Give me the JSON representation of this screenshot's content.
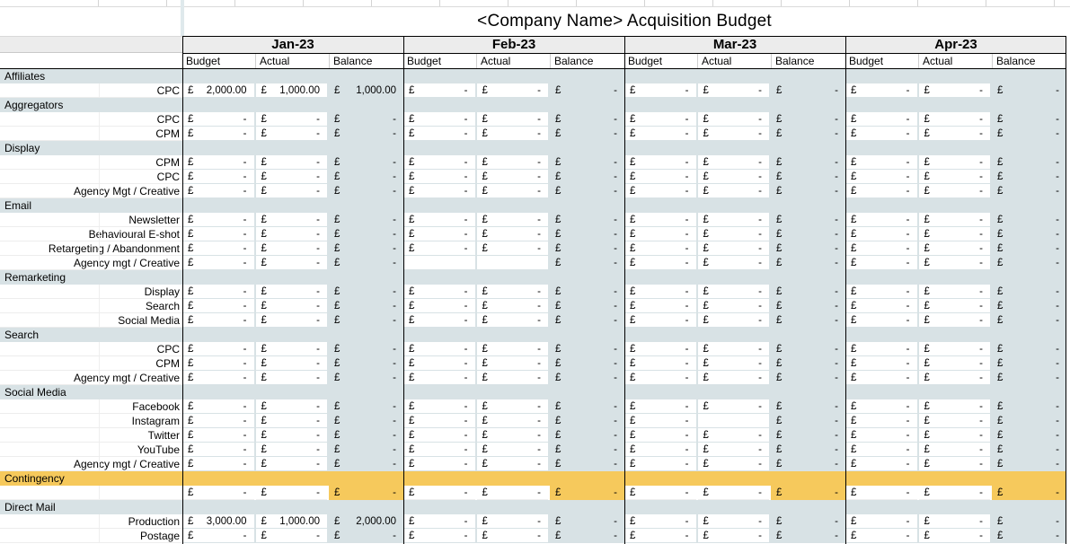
{
  "title": "<Company Name> Acquisition Budget",
  "currency_symbol": "£",
  "months": [
    {
      "label": "Jan-23"
    },
    {
      "label": "Feb-23"
    },
    {
      "label": "Mar-23"
    },
    {
      "label": "Apr-23"
    }
  ],
  "column_headers": [
    "Budget",
    "Actual",
    "Balance"
  ],
  "colors": {
    "band_blue": "#d8e2e5",
    "band_yellow": "#f6c95c",
    "header_gray": "#ececec"
  },
  "rows": [
    {
      "type": "category",
      "label": "Affiliates"
    },
    {
      "type": "data",
      "label": "CPC",
      "values": [
        [
          "2,000.00",
          "1,000.00",
          "1,000.00"
        ],
        [
          "-",
          "-",
          "-"
        ],
        [
          "-",
          "-",
          "-"
        ],
        [
          "-",
          "-",
          "-"
        ]
      ]
    },
    {
      "type": "category",
      "label": "Aggregators"
    },
    {
      "type": "data",
      "label": "CPC",
      "values": [
        [
          "-",
          "-",
          "-"
        ],
        [
          "-",
          "-",
          "-"
        ],
        [
          "-",
          "-",
          "-"
        ],
        [
          "-",
          "-",
          "-"
        ]
      ]
    },
    {
      "type": "data",
      "label": "CPM",
      "values": [
        [
          "-",
          "-",
          "-"
        ],
        [
          "-",
          "-",
          "-"
        ],
        [
          "-",
          "-",
          "-"
        ],
        [
          "-",
          "-",
          "-"
        ]
      ]
    },
    {
      "type": "category",
      "label": "Display"
    },
    {
      "type": "data",
      "label": "CPM",
      "values": [
        [
          "-",
          "-",
          "-"
        ],
        [
          "-",
          "-",
          "-"
        ],
        [
          "-",
          "-",
          "-"
        ],
        [
          "-",
          "-",
          "-"
        ]
      ]
    },
    {
      "type": "data",
      "label": "CPC",
      "values": [
        [
          "-",
          "-",
          "-"
        ],
        [
          "-",
          "-",
          "-"
        ],
        [
          "-",
          "-",
          "-"
        ],
        [
          "-",
          "-",
          "-"
        ]
      ]
    },
    {
      "type": "data",
      "label": "Agency Mgt / Creative",
      "values": [
        [
          "-",
          "-",
          "-"
        ],
        [
          "-",
          "-",
          "-"
        ],
        [
          "-",
          "-",
          "-"
        ],
        [
          "-",
          "-",
          "-"
        ]
      ]
    },
    {
      "type": "category",
      "label": "Email"
    },
    {
      "type": "data",
      "label": "Newsletter",
      "values": [
        [
          "-",
          "-",
          "-"
        ],
        [
          "-",
          "-",
          "-"
        ],
        [
          "-",
          "-",
          "-"
        ],
        [
          "-",
          "-",
          "-"
        ]
      ]
    },
    {
      "type": "data",
      "label": "Behavioural E-shot",
      "values": [
        [
          "-",
          "-",
          "-"
        ],
        [
          "-",
          "-",
          "-"
        ],
        [
          "-",
          "-",
          "-"
        ],
        [
          "-",
          "-",
          "-"
        ]
      ]
    },
    {
      "type": "data",
      "label": "Retargeting / Abandonment",
      "values": [
        [
          "-",
          "-",
          "-"
        ],
        [
          "-",
          "-",
          "-"
        ],
        [
          "-",
          "-",
          "-"
        ],
        [
          "-",
          "-",
          "-"
        ]
      ]
    },
    {
      "type": "data",
      "label": "Agency mgt / Creative",
      "values": [
        [
          "-",
          "-",
          "-"
        ],
        [
          null,
          null,
          "-"
        ],
        [
          "-",
          "-",
          "-"
        ],
        [
          "-",
          "-",
          "-"
        ]
      ]
    },
    {
      "type": "category",
      "label": "Remarketing"
    },
    {
      "type": "data",
      "label": "Display",
      "values": [
        [
          "-",
          "-",
          "-"
        ],
        [
          "-",
          "-",
          "-"
        ],
        [
          "-",
          "-",
          "-"
        ],
        [
          "-",
          "-",
          "-"
        ]
      ]
    },
    {
      "type": "data",
      "label": "Search",
      "values": [
        [
          "-",
          "-",
          "-"
        ],
        [
          "-",
          "-",
          "-"
        ],
        [
          "-",
          "-",
          "-"
        ],
        [
          "-",
          "-",
          "-"
        ]
      ]
    },
    {
      "type": "data",
      "label": "Social Media",
      "values": [
        [
          "-",
          "-",
          "-"
        ],
        [
          "-",
          "-",
          "-"
        ],
        [
          "-",
          "-",
          "-"
        ],
        [
          "-",
          "-",
          "-"
        ]
      ]
    },
    {
      "type": "category",
      "label": "Search"
    },
    {
      "type": "data",
      "label": "CPC",
      "values": [
        [
          "-",
          "-",
          "-"
        ],
        [
          "-",
          "-",
          "-"
        ],
        [
          "-",
          "-",
          "-"
        ],
        [
          "-",
          "-",
          "-"
        ]
      ]
    },
    {
      "type": "data",
      "label": "CPM",
      "values": [
        [
          "-",
          "-",
          "-"
        ],
        [
          "-",
          "-",
          "-"
        ],
        [
          "-",
          "-",
          "-"
        ],
        [
          "-",
          "-",
          "-"
        ]
      ]
    },
    {
      "type": "data",
      "label": "Agency mgt / Creative",
      "values": [
        [
          "-",
          "-",
          "-"
        ],
        [
          "-",
          "-",
          "-"
        ],
        [
          "-",
          "-",
          "-"
        ],
        [
          "-",
          "-",
          "-"
        ]
      ]
    },
    {
      "type": "category",
      "label": "Social Media"
    },
    {
      "type": "data",
      "label": "Facebook",
      "values": [
        [
          "-",
          "-",
          "-"
        ],
        [
          "-",
          "-",
          "-"
        ],
        [
          "-",
          "-",
          "-"
        ],
        [
          "-",
          "-",
          "-"
        ]
      ]
    },
    {
      "type": "data",
      "label": "Instagram",
      "values": [
        [
          "-",
          "-",
          "-"
        ],
        [
          "-",
          "-",
          "-"
        ],
        [
          "-",
          null,
          "-"
        ],
        [
          "-",
          "-",
          "-"
        ]
      ]
    },
    {
      "type": "data",
      "label": "Twitter",
      "values": [
        [
          "-",
          "-",
          "-"
        ],
        [
          "-",
          "-",
          "-"
        ],
        [
          "-",
          "-",
          "-"
        ],
        [
          "-",
          "-",
          "-"
        ]
      ]
    },
    {
      "type": "data",
      "label": "YouTube",
      "values": [
        [
          "-",
          "-",
          "-"
        ],
        [
          "-",
          "-",
          "-"
        ],
        [
          "-",
          "-",
          "-"
        ],
        [
          "-",
          "-",
          "-"
        ]
      ]
    },
    {
      "type": "data",
      "label": "Agency mgt / Creative",
      "values": [
        [
          "-",
          "-",
          "-"
        ],
        [
          "-",
          "-",
          "-"
        ],
        [
          "-",
          "-",
          "-"
        ],
        [
          "-",
          "-",
          "-"
        ]
      ]
    },
    {
      "type": "category",
      "label": "Contingency",
      "highlight": "yellow"
    },
    {
      "type": "data",
      "label": "",
      "highlight": "yellow",
      "values": [
        [
          "-",
          "-",
          "-"
        ],
        [
          "-",
          "-",
          "-"
        ],
        [
          "-",
          "-",
          "-"
        ],
        [
          "-",
          "-",
          "-"
        ]
      ]
    },
    {
      "type": "category",
      "label": "Direct Mail"
    },
    {
      "type": "data",
      "label": "Production",
      "values": [
        [
          "3,000.00",
          "1,000.00",
          "2,000.00"
        ],
        [
          "-",
          "-",
          "-"
        ],
        [
          "-",
          "-",
          "-"
        ],
        [
          "-",
          "-",
          "-"
        ]
      ]
    },
    {
      "type": "data",
      "label": "Postage",
      "values": [
        [
          "-",
          "-",
          "-"
        ],
        [
          "-",
          "-",
          "-"
        ],
        [
          "-",
          "-",
          "-"
        ],
        [
          "-",
          "-",
          "-"
        ]
      ]
    }
  ]
}
